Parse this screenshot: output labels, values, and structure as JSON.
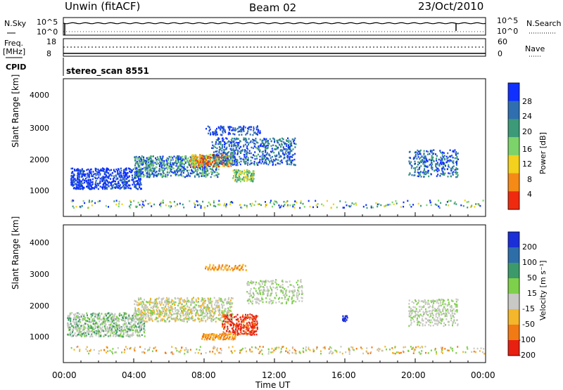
{
  "header": {
    "station": "Unwin (fitACF)",
    "beam": "Beam 02",
    "date": "23/Oct/2010"
  },
  "panels": {
    "nsky": {
      "label": "N.Sky",
      "ticks_left": [
        "10^5",
        "10^0"
      ],
      "ticks_right": [
        "10^5",
        "10^0"
      ],
      "right_label": "N.Search"
    },
    "freq": {
      "label": "Freq.",
      "unit": "[MHz]",
      "ticks_left": [
        "18",
        "8"
      ],
      "ticks_right": [
        "60",
        "0"
      ],
      "right_label": "Nave"
    },
    "cpid": {
      "label": "CPID",
      "value": "stereo_scan 8551"
    }
  },
  "chart_data": [
    {
      "type": "heatmap",
      "name": "power",
      "ylabel": "Slant Range [km]",
      "yticks": [
        "4000",
        "3000",
        "2000",
        "1000"
      ],
      "ylim": [
        200,
        4600
      ],
      "colorbar_label": "Power [dB]",
      "colorbar_ticks": [
        "28",
        "24",
        "20",
        "16",
        "12",
        "8",
        "4"
      ],
      "colors": [
        "#1030ff",
        "#2f6fb0",
        "#3c9a78",
        "#7bd36a",
        "#f3d11c",
        "#f58a16",
        "#f02a0e"
      ]
    },
    {
      "type": "heatmap",
      "name": "velocity",
      "ylabel": "Slant Range [km]",
      "yticks": [
        "4000",
        "3000",
        "2000",
        "1000"
      ],
      "ylim": [
        200,
        4600
      ],
      "xlabel": "Time UT",
      "xticks": [
        "00:00",
        "04:00",
        "08:00",
        "12:00",
        "16:00",
        "20:00",
        "00:00"
      ],
      "colorbar_label": "Velocity [m s⁻¹]",
      "colorbar_ticks": [
        "200",
        "100",
        "50",
        "15",
        "-15",
        "-50",
        "-100",
        "-200"
      ],
      "colors": [
        "#1a2fd8",
        "#2e6ea8",
        "#3c9a6a",
        "#7ed04a",
        "#c8c8c4",
        "#f4b62a",
        "#f27a14",
        "#e82010"
      ]
    }
  ]
}
